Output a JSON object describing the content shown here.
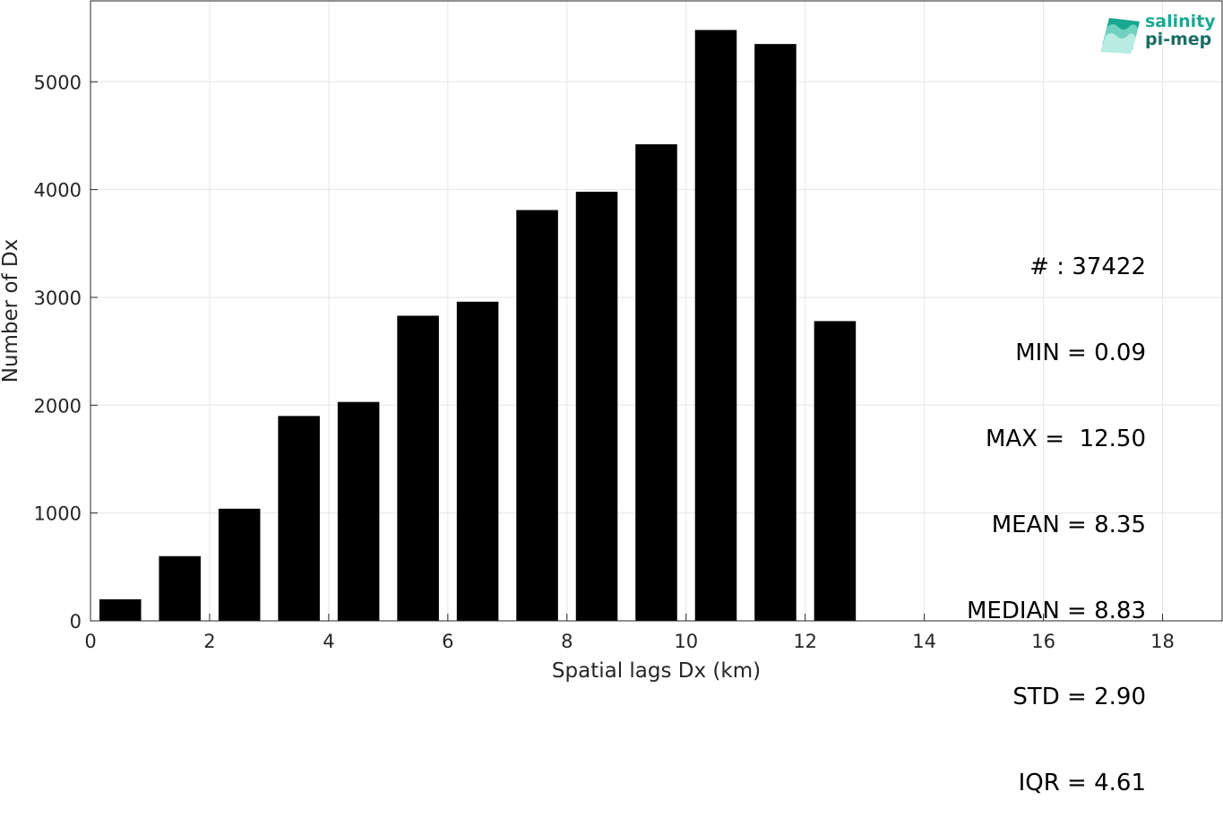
{
  "chart_data": {
    "type": "bar",
    "x": [
      0.5,
      1.5,
      2.5,
      3.5,
      4.5,
      5.5,
      6.5,
      7.5,
      8.5,
      9.5,
      10.5,
      11.5,
      12.5
    ],
    "values": [
      200,
      600,
      1040,
      1900,
      2030,
      2830,
      2960,
      3810,
      3980,
      4420,
      5480,
      5350,
      2780
    ],
    "xlabel": "Spatial lags Dx (km)",
    "ylabel": "Number of Dx",
    "xlim": [
      0,
      19
    ],
    "ylim": [
      0,
      5750
    ],
    "xticks": [
      "0",
      "2",
      "4",
      "6",
      "8",
      "10",
      "12",
      "14",
      "16",
      "18"
    ],
    "yticks": [
      "0",
      "1000",
      "2000",
      "3000",
      "4000",
      "5000"
    ],
    "grid": true,
    "bar_color": "#000000",
    "annotations": [
      "# : 37422",
      "MIN = 0.09",
      "MAX =  12.50",
      "MEAN = 8.35",
      "MEDIAN = 8.83",
      "STD = 2.90",
      "IQR = 4.61"
    ]
  },
  "logo": {
    "line1": "salinity",
    "line2": "pi-mep",
    "color1": "#1aa891",
    "color2": "#1a6e62"
  }
}
